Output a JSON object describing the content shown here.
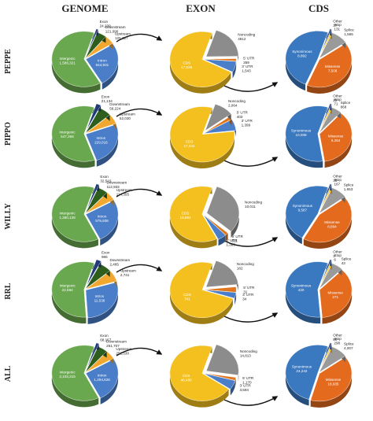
{
  "headers": {
    "genome": "GENOME",
    "exon": "EXON",
    "cds": "CDS"
  },
  "rows": [
    "PEPPE",
    "PIPPO",
    "WILLY",
    "RRL",
    "ALL"
  ],
  "chart_data": [
    {
      "type": "pie",
      "row": "PEPPE",
      "panels": [
        {
          "column": "GENOME",
          "slices": [
            {
              "name": "Intergenic",
              "value": 1586321,
              "label": "1,586,321",
              "color": "#6aa84f"
            },
            {
              "name": "Intron",
              "value": 644931,
              "label": "644,931",
              "color": "#4a7ec8"
            },
            {
              "name": "Upstream",
              "value": 125327,
              "label": "125,327",
              "color": "#f0a830"
            },
            {
              "name": "Downstream",
              "value": 121090,
              "label": "121,090",
              "color": "#2e5e1e"
            },
            {
              "name": "Exon",
              "value": 24239,
              "label": "24,239",
              "color": "#1f3c78"
            }
          ]
        },
        {
          "column": "EXON",
          "slices": [
            {
              "name": "CDS",
              "value": 17626,
              "label": "17,626",
              "color": "#f4c020"
            },
            {
              "name": "3' UTR",
              "value": 1543,
              "label": "1,543",
              "color": "#4a7ec8"
            },
            {
              "name": "5' UTR",
              "value": 359,
              "label": "359",
              "color": "#e0761e"
            },
            {
              "name": "Noncoding",
              "value": 4812,
              "label": "4812",
              "color": "#8c8c8c"
            }
          ]
        },
        {
          "column": "CDS",
          "slices": [
            {
              "name": "Synonimous",
              "value": 8892,
              "label": "8,892",
              "color": "#3a78c0"
            },
            {
              "name": "Missense",
              "value": 7508,
              "label": "7,508",
              "color": "#e46a1e"
            },
            {
              "name": "Splice",
              "value": 1565,
              "label": "1,565",
              "color": "#9a9a9a"
            },
            {
              "name": "Stop",
              "value": 131,
              "label": "131",
              "color": "#f4c020"
            },
            {
              "name": "Other",
              "value": 37,
              "label": "37",
              "color": "#2a4a8a"
            }
          ]
        }
      ]
    },
    {
      "type": "pie",
      "row": "PIPPO",
      "panels": [
        {
          "column": "GENOME",
          "slices": [
            {
              "name": "Intergenic",
              "value": 547266,
              "label": "547,266",
              "color": "#6aa84f"
            },
            {
              "name": "Intron",
              "value": 229016,
              "label": "229,016",
              "color": "#4a7ec8"
            },
            {
              "name": "Upstream",
              "value": 52030,
              "label": "52,030",
              "color": "#f0a830"
            },
            {
              "name": "Downstream",
              "value": 56224,
              "label": "56,224",
              "color": "#2e5e1e"
            },
            {
              "name": "Exon",
              "value": 21134,
              "label": "21,134",
              "color": "#1f3c78"
            }
          ]
        },
        {
          "column": "EXON",
          "slices": [
            {
              "name": "CDS",
              "value": 17341,
              "label": "17,341",
              "color": "#f4c020"
            },
            {
              "name": "3' UTR",
              "value": 1399,
              "label": "1,399",
              "color": "#4a7ec8"
            },
            {
              "name": "5' UTR",
              "value": 403,
              "label": "403",
              "color": "#e0761e"
            },
            {
              "name": "Noncoding",
              "value": 2064,
              "label": "2,064",
              "color": "#8c8c8c"
            }
          ]
        },
        {
          "column": "CDS",
          "slices": [
            {
              "name": "Synonimous",
              "value": 10008,
              "label": "10,008",
              "color": "#3a78c0"
            },
            {
              "name": "Missense",
              "value": 6254,
              "label": "6,254",
              "color": "#e46a1e"
            },
            {
              "name": "Splice",
              "value": 868,
              "label": "868",
              "color": "#9a9a9a"
            },
            {
              "name": "Stop",
              "value": 71,
              "label": "71",
              "color": "#f4c020"
            },
            {
              "name": "Other",
              "value": 22,
              "label": "22",
              "color": "#2a4a8a"
            }
          ]
        }
      ]
    },
    {
      "type": "pie",
      "row": "WILLY",
      "panels": [
        {
          "column": "GENOME",
          "slices": [
            {
              "name": "Intergenic",
              "value": 1380138,
              "label": "1,380,138",
              "color": "#6aa84f"
            },
            {
              "name": "Intron",
              "value": 575938,
              "label": "575,938",
              "color": "#4a7ec8"
            },
            {
              "name": "Upstream",
              "value": 114355,
              "label": "114,355",
              "color": "#f0a830"
            },
            {
              "name": "Downstream",
              "value": 112933,
              "label": "112,933",
              "color": "#2e5e1e"
            },
            {
              "name": "Exon",
              "value": 32519,
              "label": "32,519",
              "color": "#1f3c78"
            }
          ]
        },
        {
          "column": "EXON",
          "slices": [
            {
              "name": "CDS",
              "value": 19884,
              "label": "19,884",
              "color": "#f4c020"
            },
            {
              "name": "3' UTR",
              "value": 1363,
              "label": "1,363",
              "color": "#4a7ec8"
            },
            {
              "name": "5' UTR",
              "value": 511,
              "label": "511",
              "color": "#e0761e"
            },
            {
              "name": "Noncoding",
              "value": 10011,
              "label": "10,011",
              "color": "#8c8c8c"
            }
          ]
        },
        {
          "column": "CDS",
          "slices": [
            {
              "name": "Synonimous",
              "value": 9587,
              "label": "9,587",
              "color": "#3a78c0"
            },
            {
              "name": "Missense",
              "value": 8894,
              "label": "8,894",
              "color": "#e46a1e"
            },
            {
              "name": "Splice",
              "value": 1653,
              "label": "1,653",
              "color": "#9a9a9a"
            },
            {
              "name": "Stop",
              "value": 167,
              "label": "167",
              "color": "#f4c020"
            },
            {
              "name": "Other",
              "value": 30,
              "label": "30",
              "color": "#2a4a8a"
            }
          ]
        }
      ]
    },
    {
      "type": "pie",
      "row": "RRL",
      "panels": [
        {
          "column": "GENOME",
          "slices": [
            {
              "name": "Intergenic",
              "value": 22594,
              "label": "22,594",
              "color": "#6aa84f"
            },
            {
              "name": "Intron",
              "value": 11538,
              "label": "11,538",
              "color": "#4a7ec8"
            },
            {
              "name": "Upstream",
              "value": 2741,
              "label": "2,741",
              "color": "#f0a830"
            },
            {
              "name": "Downstream",
              "value": 2485,
              "label": "2,485",
              "color": "#2e5e1e"
            },
            {
              "name": "Exon",
              "value": 986,
              "label": "986",
              "color": "#1f3c78"
            }
          ]
        },
        {
          "column": "EXON",
          "slices": [
            {
              "name": "CDS",
              "value": 741,
              "label": "741",
              "color": "#f4c020"
            },
            {
              "name": "3' UTR",
              "value": 34,
              "label": "34",
              "color": "#4a7ec8"
            },
            {
              "name": "5' UTR",
              "value": 31,
              "label": "31",
              "color": "#e0761e"
            },
            {
              "name": "Noncoding",
              "value": 182,
              "label": "182",
              "color": "#8c8c8c"
            }
          ]
        },
        {
          "column": "CDS",
          "slices": [
            {
              "name": "Synonimous",
              "value": 420,
              "label": "420",
              "color": "#3a78c0"
            },
            {
              "name": "Missense",
              "value": 271,
              "label": "271",
              "color": "#e46a1e"
            },
            {
              "name": "Splice",
              "value": 43,
              "label": "43",
              "color": "#9a9a9a"
            },
            {
              "name": "Stop",
              "value": 6,
              "label": "6",
              "color": "#f4c020"
            },
            {
              "name": "Other",
              "value": 3,
              "label": "3",
              "color": "#2a4a8a"
            }
          ]
        }
      ]
    },
    {
      "type": "pie",
      "row": "ALL",
      "panels": [
        {
          "column": "GENOME",
          "slices": [
            {
              "name": "Intergenic",
              "value": 3103215,
              "label": "3,103,215",
              "color": "#6aa84f"
            },
            {
              "name": "Intron",
              "value": 1294626,
              "label": "1,294,626",
              "color": "#4a7ec8"
            },
            {
              "name": "Upstream",
              "value": 252530,
              "label": "252,530",
              "color": "#f0a830"
            },
            {
              "name": "Downstream",
              "value": 251707,
              "label": "251,707",
              "color": "#2e5e1e"
            },
            {
              "name": "Exon",
              "value": 68157,
              "label": "68,157",
              "color": "#1f3c78"
            }
          ]
        },
        {
          "column": "EXON",
          "slices": [
            {
              "name": "CDS",
              "value": 46480,
              "label": "46,480",
              "color": "#f4c020"
            },
            {
              "name": "3' UTR",
              "value": 3594,
              "label": "3,594",
              "color": "#4a7ec8"
            },
            {
              "name": "5' UTR",
              "value": 1170,
              "label": "1,170",
              "color": "#e0761e"
            },
            {
              "name": "Noncoding",
              "value": 14813,
              "label": "14,813",
              "color": "#8c8c8c"
            }
          ]
        },
        {
          "column": "CDS",
          "slices": [
            {
              "name": "Synonimous",
              "value": 24242,
              "label": "24,242",
              "color": "#3a78c0"
            },
            {
              "name": "Missense",
              "value": 18935,
              "label": "18,935",
              "color": "#e46a1e"
            },
            {
              "name": "Splice",
              "value": 4007,
              "label": "4,007",
              "color": "#9a9a9a"
            },
            {
              "name": "Stop",
              "value": 298,
              "label": "298",
              "color": "#f4c020"
            },
            {
              "name": "Other",
              "value": 80,
              "label": "80",
              "color": "#2a4a8a"
            }
          ]
        }
      ]
    }
  ]
}
